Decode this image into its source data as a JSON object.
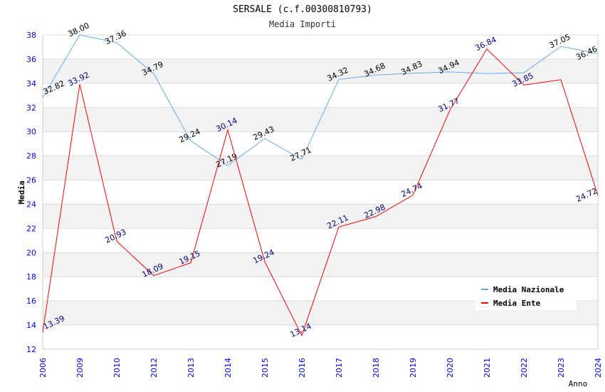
{
  "chart_data": {
    "type": "line",
    "title": "SERSALE (c.f.00300810793)",
    "subtitle": "Media Importi",
    "xlabel": "Anno",
    "ylabel": "Media",
    "ylim": [
      12,
      38
    ],
    "yticks": [
      12,
      14,
      16,
      18,
      20,
      22,
      24,
      26,
      28,
      30,
      32,
      34,
      36,
      38
    ],
    "categories": [
      "2006",
      "2009",
      "2010",
      "2012",
      "2013",
      "2014",
      "2015",
      "2016",
      "2017",
      "2018",
      "2019",
      "2020",
      "2021",
      "2022",
      "2023",
      "2024"
    ],
    "legend_position": "top-right",
    "series": [
      {
        "name": "Media Nazionale",
        "color": "#66aaee",
        "label_color": "#000000",
        "values": [
          32.82,
          38.0,
          37.36,
          34.79,
          29.24,
          27.19,
          29.43,
          27.71,
          34.32,
          34.68,
          34.83,
          34.94,
          34.8,
          34.87,
          37.05,
          36.46
        ],
        "labels": [
          "32.82",
          "38.00",
          "37.36",
          "34.79",
          "29.24",
          "27.19",
          "29.43",
          "27.71",
          "34.32",
          "34.68",
          "34.83",
          "34.94",
          "",
          "",
          "37.05",
          "36.46"
        ]
      },
      {
        "name": "Media Ente",
        "color": "#ff0000",
        "label_color": "#000080",
        "values": [
          13.39,
          33.92,
          20.93,
          18.09,
          19.15,
          30.14,
          19.24,
          13.14,
          22.11,
          22.98,
          24.74,
          31.77,
          36.84,
          33.85,
          34.3,
          24.72
        ],
        "labels": [
          "13.39",
          "33.92",
          "20.93",
          "18.09",
          "19.15",
          "30.14",
          "19.24",
          "13.14",
          "22.11",
          "22.98",
          "24.74",
          "31.77",
          "36.84",
          "33.85",
          "",
          "24.72"
        ]
      }
    ]
  }
}
